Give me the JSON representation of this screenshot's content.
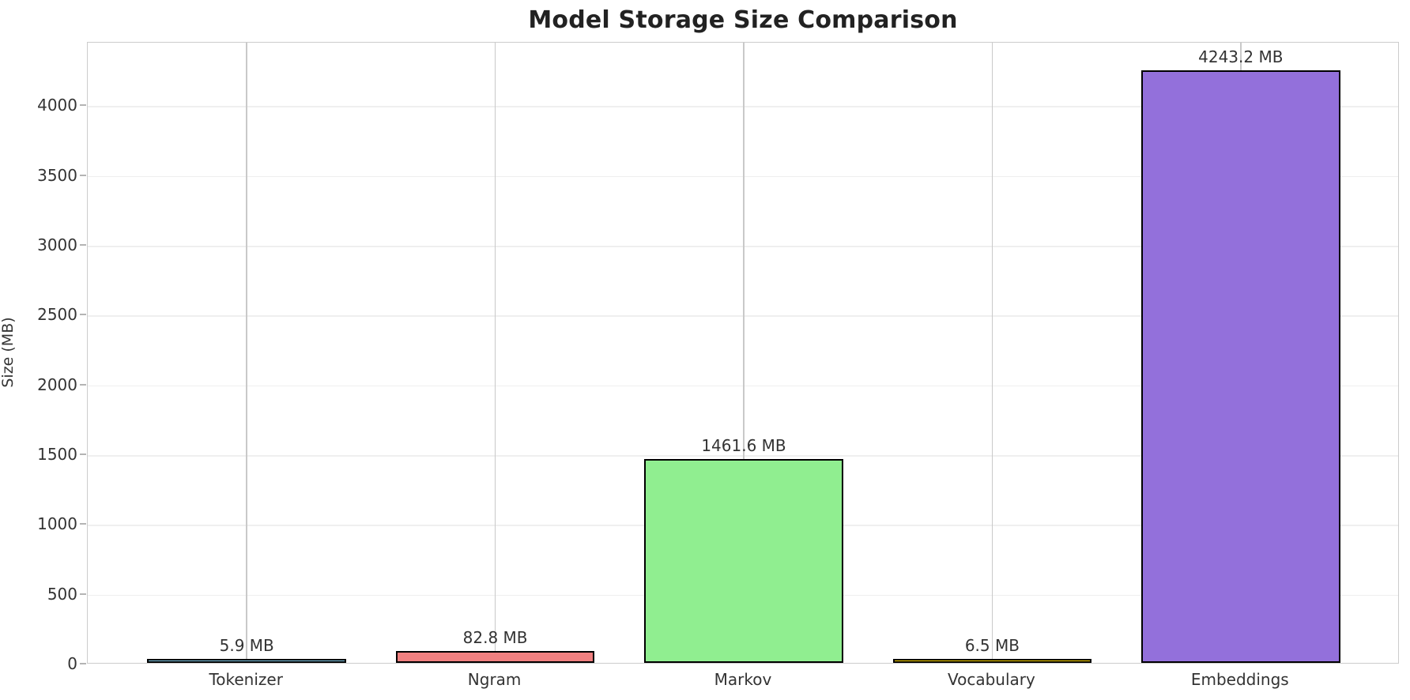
{
  "figure": {
    "title": "Model Storage Size Comparison"
  },
  "chart_data": {
    "type": "bar",
    "title": "Model Storage Size Comparison",
    "xlabel": "",
    "ylabel": "Size (MB)",
    "categories": [
      "Tokenizer",
      "Ngram",
      "Markov",
      "Vocabulary",
      "Embeddings"
    ],
    "values": [
      5.9,
      82.8,
      1461.6,
      6.5,
      4243.2
    ],
    "value_labels": [
      "5.9 MB",
      "82.8 MB",
      "1461.6 MB",
      "6.5 MB",
      "4243.2 MB"
    ],
    "bar_colors": [
      "#87CEEB",
      "#F08080",
      "#90EE90",
      "#FFD700",
      "#9370DB"
    ],
    "bar_edge_color": "#000000",
    "yticks": [
      0,
      500,
      1000,
      1500,
      2000,
      2500,
      3000,
      3500,
      4000
    ],
    "ylim": [
      0,
      4455
    ],
    "grid": true,
    "legend": false,
    "colors": {
      "background": "#ffffff",
      "grid_horizontal": "#efefef",
      "grid_vertical": "#c9c9c9",
      "spine": "#cccccc",
      "tick_mark": "#b4b4b4",
      "tick_text": "#333333",
      "title_text": "#222222"
    }
  }
}
